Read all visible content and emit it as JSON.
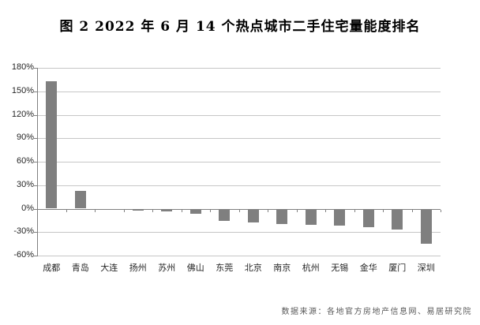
{
  "title": "图 2  2022 年 6 月 14 个热点城市二手住宅量能度排名",
  "source_note": "数据来源：各地官方房地产信息网、易居研究院",
  "colors": {
    "bar": "#7f7f7f",
    "gridline": "#c6c6c6",
    "axis": "#808080",
    "title_text": "#000000",
    "label_text": "#262626",
    "note_text": "#595959",
    "background": "#ffffff"
  },
  "chart_data": {
    "type": "bar",
    "title": "图 2  2022 年 6 月 14 个热点城市二手住宅量能度排名",
    "categories": [
      "成都",
      "青岛",
      "大连",
      "扬州",
      "苏州",
      "佛山",
      "东莞",
      "北京",
      "南京",
      "杭州",
      "无锡",
      "金华",
      "厦门",
      "深圳"
    ],
    "values": [
      163,
      23,
      -2,
      -3,
      -4,
      -7,
      -16,
      -18,
      -20,
      -21,
      -22,
      -24,
      -27,
      -45
    ],
    "value_unit": "%",
    "xlabel": "",
    "ylabel": "",
    "ylim": [
      -60,
      180
    ],
    "ytick_step": 30,
    "ytick_labels": [
      "180%",
      "150%",
      "120%",
      "90%",
      "60%",
      "30%",
      "0%",
      "-30%",
      "-60%"
    ],
    "grid": true,
    "legend": false,
    "annotation": "数据来源：各地官方房地产信息网、易居研究院"
  }
}
